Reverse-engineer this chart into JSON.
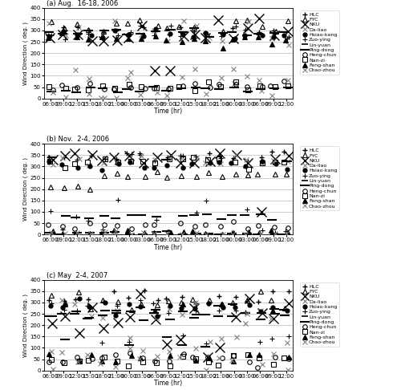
{
  "title_a": "(a) Aug.  16-18, 2006",
  "title_b": "(b) Nov.  2-4, 2006",
  "title_c": "(c) May  2-4, 2007",
  "xlabel": "Time (hr)",
  "ylabel": "Wind Direction ( deg. )",
  "time_labels": [
    "06:00",
    "09:00",
    "12:00",
    "15:00",
    "18:00",
    "21:00",
    "00:00",
    "03:00",
    "06:00",
    "09:00",
    "12:00",
    "15:00",
    "18:00",
    "21:00",
    "00:00",
    "03:00",
    "06:00",
    "09:00",
    "12:00"
  ],
  "legend_labels": [
    "HLC",
    "FYC",
    "NKU",
    "Da-liao",
    "Hsiao-kang",
    "Zuo-ying",
    "Lin-yuan",
    "Ping-dong",
    "Heng-chun",
    "Nan-zi",
    "Feng-shan",
    "Chao-zhou"
  ]
}
